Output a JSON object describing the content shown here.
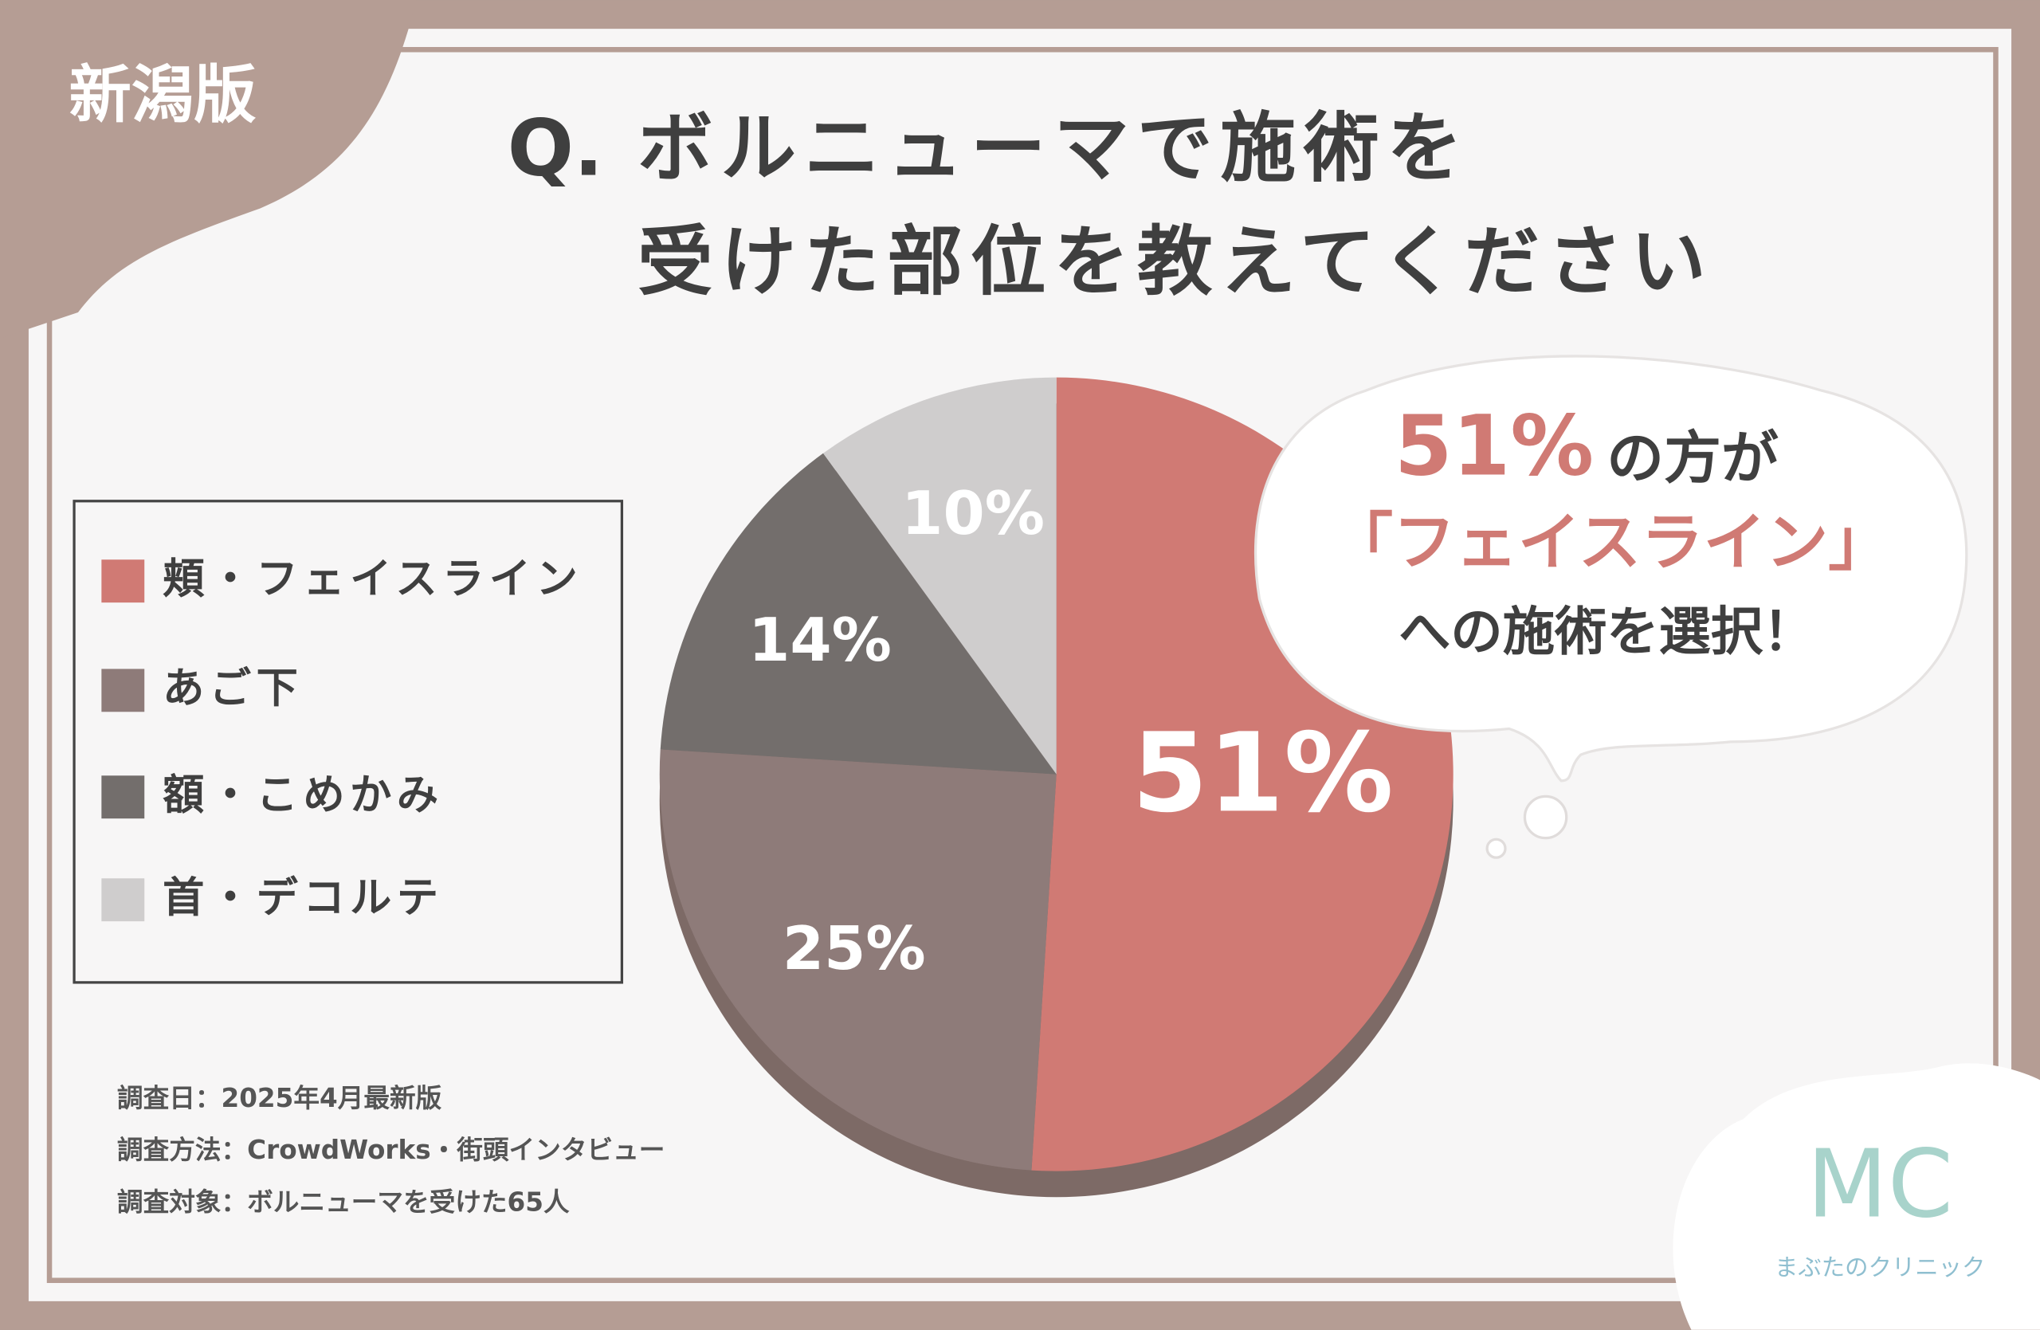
{
  "badge": "新潟版",
  "chart_data": {
    "type": "pie",
    "title_prefix": "Q.",
    "title": [
      "ボルニューマで施術を",
      "受けた部位を教えてください"
    ],
    "categories": [
      "頬・フェイスライン",
      "あご下",
      "額・こめかみ",
      "首・デコルテ"
    ],
    "values": [
      51,
      25,
      14,
      10
    ],
    "value_labels": [
      "51%",
      "25%",
      "14%",
      "10%"
    ],
    "colors": [
      "#d07a74",
      "#8e7b79",
      "#736e6c",
      "#cfcdcd"
    ],
    "legend": "left"
  },
  "callout": {
    "highlight": "51%",
    "line1_rest": "の方が",
    "line2": "「フェイスライン」",
    "line3": "への施術を選択！"
  },
  "notes": [
    "調査日：2025年4月最新版",
    "調査方法：CrowdWorks・街頭インタビュー",
    "調査対象：ボルニューマを受けた65人"
  ],
  "logo": {
    "mark": "MC",
    "name": "まぶたのクリニック"
  }
}
